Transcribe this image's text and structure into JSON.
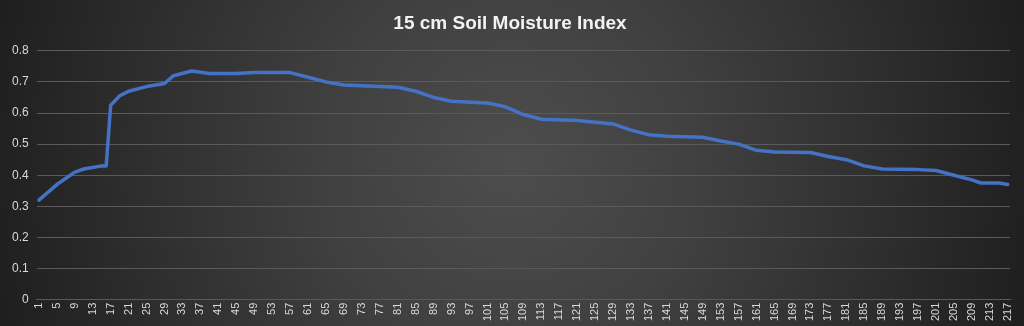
{
  "chart_data": {
    "type": "line",
    "title": "15 cm Soil Moisture Index",
    "xlim": [
      0.5,
      217.5
    ],
    "xticks": [
      1,
      5,
      9,
      13,
      17,
      21,
      25,
      29,
      33,
      37,
      41,
      45,
      49,
      53,
      57,
      61,
      65,
      69,
      73,
      77,
      81,
      85,
      89,
      93,
      97,
      101,
      105,
      109,
      113,
      117,
      121,
      125,
      129,
      133,
      137,
      141,
      145,
      149,
      153,
      157,
      161,
      165,
      169,
      173,
      177,
      181,
      185,
      189,
      193,
      197,
      201,
      205,
      209,
      213,
      217
    ],
    "ylim": [
      0,
      0.8
    ],
    "yticks": [
      0,
      0.1,
      0.2,
      0.3,
      0.4,
      0.5,
      0.6,
      0.7,
      0.8
    ],
    "grid": "y",
    "legend": false,
    "marker": "none",
    "line_style": "solid",
    "series": [
      {
        "color": "#4472c4",
        "x": [
          1,
          5,
          9,
          11,
          15,
          16,
          17,
          19,
          21,
          25,
          29,
          31,
          35,
          39,
          45,
          49,
          57,
          61,
          65,
          69,
          77,
          81,
          85,
          89,
          93,
          101,
          105,
          109,
          113,
          121,
          129,
          133,
          137,
          141,
          149,
          153,
          157,
          161,
          165,
          173,
          177,
          181,
          185,
          189,
          197,
          201,
          205,
          209,
          211,
          215,
          217
        ],
        "values": [
          0.32,
          0.37,
          0.41,
          0.42,
          0.43,
          0.43,
          0.625,
          0.655,
          0.67,
          0.685,
          0.695,
          0.72,
          0.735,
          0.727,
          0.727,
          0.73,
          0.73,
          0.715,
          0.7,
          0.69,
          0.685,
          0.683,
          0.67,
          0.65,
          0.638,
          0.632,
          0.62,
          0.595,
          0.58,
          0.576,
          0.565,
          0.545,
          0.53,
          0.525,
          0.522,
          0.51,
          0.5,
          0.48,
          0.475,
          0.473,
          0.46,
          0.45,
          0.43,
          0.42,
          0.418,
          0.415,
          0.4,
          0.385,
          0.375,
          0.375,
          0.37
        ]
      }
    ]
  }
}
